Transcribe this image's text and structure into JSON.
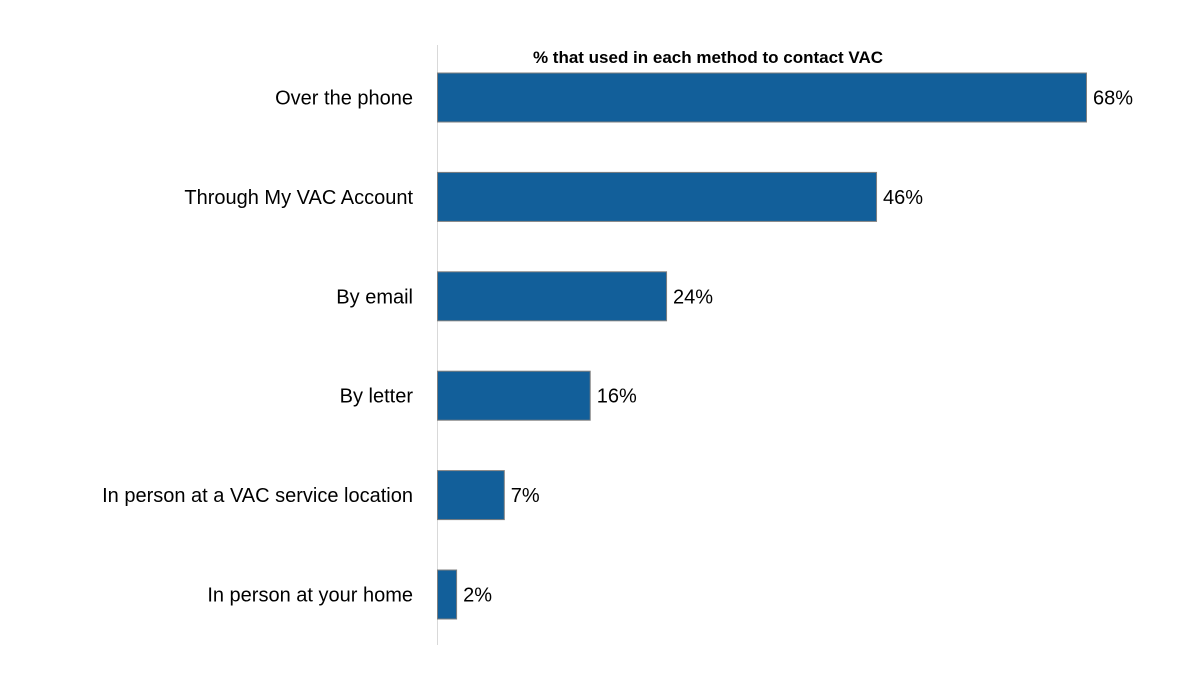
{
  "chart_data": {
    "type": "bar",
    "orientation": "horizontal",
    "title": "% that used in each method to contact VAC",
    "categories": [
      "Over the phone",
      "Through My VAC Account",
      "By email",
      "By letter",
      "In person at a VAC service location",
      "In person at your home"
    ],
    "values": [
      68,
      46,
      24,
      16,
      7,
      2
    ],
    "value_labels": [
      "68%",
      "46%",
      "24%",
      "16%",
      "7%",
      "2%"
    ],
    "xlim": [
      0,
      100
    ],
    "grid": false,
    "legend": "none",
    "colors": {
      "bar": "#125F9A",
      "bar_border": "#7f7f7f",
      "axis": "#d9d9d9"
    }
  }
}
